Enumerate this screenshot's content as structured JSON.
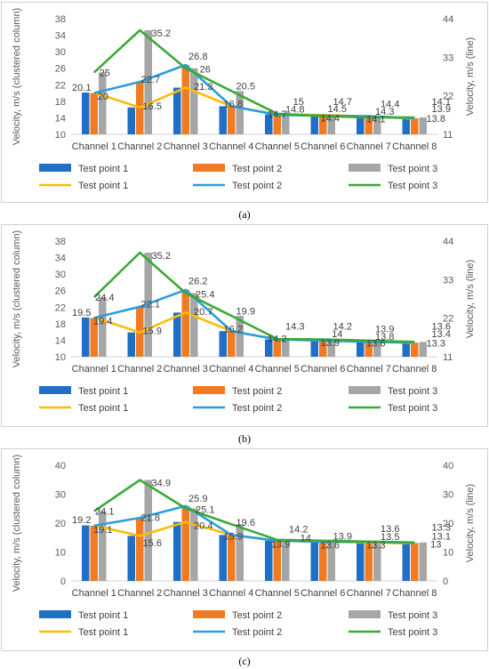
{
  "colors": {
    "bar": [
      "#1f6fc5",
      "#f07b22",
      "#a6a6a6"
    ],
    "line": [
      "#fbbc05",
      "#2a9de0",
      "#3aaa35"
    ]
  },
  "charts": [
    {
      "caption": "(a)",
      "chart_data": {
        "type": "bar+line",
        "categories": [
          "Channel 1",
          "Channel 2",
          "Channel 3",
          "Channel 4",
          "Channel 5",
          "Channel 6",
          "Channel 7",
          "Channel 8"
        ],
        "ylabel_left": "Velocity, m/s (clustered column)",
        "ylabel_right": "Velocity, m/s (line)",
        "ylim_left": [
          10,
          38
        ],
        "yticks_left": [
          "10",
          "14",
          "18",
          "22",
          "26",
          "30",
          "34",
          "38"
        ],
        "ylim_right": [
          11,
          44
        ],
        "yticks_right": [
          "11",
          "22",
          "33",
          "44"
        ],
        "bar_series": [
          {
            "name": "Test point 1",
            "values": [
              20.1,
              16.5,
              21.3,
              16.8,
              14.8,
              14.7,
              14.3,
              13.8
            ]
          },
          {
            "name": "Test point 2",
            "values": [
              20,
              22.7,
              26.8,
              16.8,
              14.7,
              14.5,
              14.4,
              13.9
            ]
          },
          {
            "name": "Test point 3",
            "values": [
              25,
              35.2,
              26,
              20.5,
              15,
              14.4,
              14.1,
              14.1
            ]
          }
        ],
        "line_series": [
          {
            "name": "Test point 1",
            "values": [
              20.1,
              16.5,
              21.3,
              16.8,
              14.8,
              14.7,
              14.3,
              13.8
            ]
          },
          {
            "name": "Test point 2",
            "values": [
              20,
              22.7,
              26.8,
              16.8,
              14.7,
              14.5,
              14.4,
              13.9
            ]
          },
          {
            "name": "Test point 3",
            "values": [
              25,
              35.2,
              26,
              20.5,
              15,
              14.4,
              14.1,
              14.1
            ]
          }
        ],
        "labels": [
          {
            "text": "20.1",
            "cat": 0,
            "y": 21.4,
            "dx": -14
          },
          {
            "text": "20",
            "cat": 0,
            "y": 19.3,
            "dx": 10
          },
          {
            "text": "25",
            "cat": 0,
            "y": 25.0,
            "dx": 12
          },
          {
            "text": "16.5",
            "cat": 1,
            "y": 16.9,
            "dx": 14
          },
          {
            "text": "22.7",
            "cat": 1,
            "y": 23.4,
            "dx": 12
          },
          {
            "text": "35.2",
            "cat": 1,
            "y": 34.6,
            "dx": 24
          },
          {
            "text": "21.3",
            "cat": 2,
            "y": 21.6,
            "dx": 20
          },
          {
            "text": "26.8",
            "cat": 2,
            "y": 29.0,
            "dx": 14
          },
          {
            "text": "26",
            "cat": 2,
            "y": 25.8,
            "dx": 22
          },
          {
            "text": "16.8",
            "cat": 3,
            "y": 17.4,
            "dx": 2
          },
          {
            "text": "20.5",
            "cat": 3,
            "y": 21.7,
            "dx": 16
          },
          {
            "text": "15",
            "cat": 4,
            "y": 18.0,
            "dx": 24
          },
          {
            "text": "14.8",
            "cat": 4,
            "y": 16.1,
            "dx": 20
          },
          {
            "text": "14.7",
            "cat": 4,
            "y": 15.0,
            "dx": 0
          },
          {
            "text": "14.7",
            "cat": 5,
            "y": 18.0,
            "dx": 22
          },
          {
            "text": "14.5",
            "cat": 5,
            "y": 16.2,
            "dx": 16
          },
          {
            "text": "14.4",
            "cat": 5,
            "y": 14.0,
            "dx": 8
          },
          {
            "text": "14.4",
            "cat": 6,
            "y": 17.4,
            "dx": 24
          },
          {
            "text": "14.3",
            "cat": 6,
            "y": 15.6,
            "dx": 18
          },
          {
            "text": "14.1",
            "cat": 6,
            "y": 13.8,
            "dx": 8
          },
          {
            "text": "14.1",
            "cat": 7,
            "y": 18.0,
            "dx": 30
          },
          {
            "text": "13.9",
            "cat": 7,
            "y": 16.2,
            "dx": 30
          },
          {
            "text": "13.8",
            "cat": 7,
            "y": 13.9,
            "dx": 24
          }
        ]
      }
    },
    {
      "caption": "(b)",
      "chart_data": {
        "type": "bar+line",
        "categories": [
          "Channel 1",
          "Channel 2",
          "Channel 3",
          "Channel 4",
          "Channel 5",
          "Channel 6",
          "Channel 7",
          "Channel 8"
        ],
        "ylabel_left": "Velocity, m/s (clustered column)",
        "ylabel_right": "Velocity, m/s (line)",
        "ylim_left": [
          10,
          38
        ],
        "yticks_left": [
          "10",
          "14",
          "18",
          "22",
          "26",
          "30",
          "34",
          "38"
        ],
        "ylim_right": [
          11,
          44
        ],
        "yticks_right": [
          "11",
          "22",
          "33",
          "44"
        ],
        "bar_series": [
          {
            "name": "Test point 1",
            "values": [
              19.5,
              15.9,
              20.7,
              16.2,
              14.2,
              14,
              13.8,
              13.3
            ]
          },
          {
            "name": "Test point 2",
            "values": [
              19.4,
              22.1,
              26.2,
              16.2,
              14.2,
              13.9,
              13.6,
              13.4
            ]
          },
          {
            "name": "Test point 3",
            "values": [
              24.4,
              35.2,
              25.4,
              19.9,
              14.3,
              14.2,
              13.9,
              13.6
            ]
          }
        ],
        "line_series": [
          {
            "name": "Test point 1",
            "values": [
              19.5,
              15.9,
              20.7,
              16.2,
              14.2,
              14,
              13.8,
              13.3
            ]
          },
          {
            "name": "Test point 2",
            "values": [
              19.4,
              22.1,
              26.2,
              16.2,
              14.2,
              13.9,
              13.6,
              13.4
            ]
          },
          {
            "name": "Test point 3",
            "values": [
              24.4,
              35.2,
              25.4,
              19.9,
              14.3,
              14.2,
              13.9,
              13.6
            ]
          }
        ],
        "labels": [
          {
            "text": "19.5",
            "cat": 0,
            "y": 20.8,
            "dx": -14
          },
          {
            "text": "19.4",
            "cat": 0,
            "y": 18.7,
            "dx": 10
          },
          {
            "text": "24.4",
            "cat": 0,
            "y": 24.4,
            "dx": 12
          },
          {
            "text": "15.9",
            "cat": 1,
            "y": 16.4,
            "dx": 14
          },
          {
            "text": "22.1",
            "cat": 1,
            "y": 22.8,
            "dx": 12
          },
          {
            "text": "35.2",
            "cat": 1,
            "y": 34.6,
            "dx": 24
          },
          {
            "text": "20.7",
            "cat": 2,
            "y": 21.0,
            "dx": 20
          },
          {
            "text": "26.2",
            "cat": 2,
            "y": 28.4,
            "dx": 14
          },
          {
            "text": "25.4",
            "cat": 2,
            "y": 25.2,
            "dx": 22
          },
          {
            "text": "16.2",
            "cat": 3,
            "y": 16.8,
            "dx": 2
          },
          {
            "text": "19.9",
            "cat": 3,
            "y": 21.1,
            "dx": 16
          },
          {
            "text": "14.3",
            "cat": 4,
            "y": 17.4,
            "dx": 20
          },
          {
            "text": "14.2",
            "cat": 4,
            "y": 14.4,
            "dx": 0
          },
          {
            "text": "14.2",
            "cat": 5,
            "y": 17.4,
            "dx": 22
          },
          {
            "text": "14",
            "cat": 5,
            "y": 15.6,
            "dx": 16
          },
          {
            "text": "13.9",
            "cat": 5,
            "y": 13.4,
            "dx": 8
          },
          {
            "text": "13.9",
            "cat": 6,
            "y": 16.8,
            "dx": 18
          },
          {
            "text": "13.8",
            "cat": 6,
            "y": 15.0,
            "dx": 18
          },
          {
            "text": "13.6",
            "cat": 6,
            "y": 13.3,
            "dx": 8
          },
          {
            "text": "13.6",
            "cat": 7,
            "y": 17.4,
            "dx": 30
          },
          {
            "text": "13.4",
            "cat": 7,
            "y": 15.6,
            "dx": 30
          },
          {
            "text": "13.3",
            "cat": 7,
            "y": 13.3,
            "dx": 24
          }
        ]
      }
    },
    {
      "caption": "(c)",
      "chart_data": {
        "type": "bar+line",
        "categories": [
          "Channel 1",
          "Channel 2",
          "Channel 3",
          "Channel 4",
          "Channel 5",
          "Channel 6",
          "Channel 7",
          "Channel 8"
        ],
        "ylabel_left": "Velocity, m/s (clustered column)",
        "ylabel_right": "Velocity, m/s (line)",
        "ylim_left": [
          0,
          40
        ],
        "yticks_left": [
          "0",
          "10",
          "20",
          "30",
          "40"
        ],
        "ylim_right": [
          0,
          40
        ],
        "yticks_right": [
          "0",
          "10",
          "20",
          "30",
          "40"
        ],
        "bar_series": [
          {
            "name": "Test point 1",
            "values": [
              19.2,
              15.6,
              20.4,
              15.9,
              13.9,
              13.6,
              13.3,
              13
            ]
          },
          {
            "name": "Test point 2",
            "values": [
              19.1,
              21.8,
              25.9,
              15.9,
              13.9,
              13.6,
              13.5,
              13.1
            ]
          },
          {
            "name": "Test point 3",
            "values": [
              24.1,
              34.9,
              25.1,
              19.6,
              14.2,
              13.9,
              13.6,
              13.3
            ]
          }
        ],
        "line_series": [
          {
            "name": "Test point 1",
            "values": [
              19.2,
              15.6,
              20.4,
              15.9,
              13.9,
              13.6,
              13.3,
              13
            ]
          },
          {
            "name": "Test point 2",
            "values": [
              19.1,
              21.8,
              25.9,
              15.9,
              13.9,
              13.6,
              13.5,
              13.1
            ]
          },
          {
            "name": "Test point 3",
            "values": [
              24.1,
              34.9,
              25.1,
              19.6,
              14.2,
              13.9,
              13.6,
              13.3
            ]
          }
        ],
        "labels": [
          {
            "text": "19.2",
            "cat": 0,
            "y": 21.2,
            "dx": -14
          },
          {
            "text": "19.1",
            "cat": 0,
            "y": 17.8,
            "dx": 10
          },
          {
            "text": "24.1",
            "cat": 0,
            "y": 24.1,
            "dx": 12
          },
          {
            "text": "15.6",
            "cat": 1,
            "y": 13.2,
            "dx": 14
          },
          {
            "text": "21.8",
            "cat": 1,
            "y": 22.0,
            "dx": 12
          },
          {
            "text": "34.9",
            "cat": 1,
            "y": 34.0,
            "dx": 24
          },
          {
            "text": "20.4",
            "cat": 2,
            "y": 19.3,
            "dx": 20
          },
          {
            "text": "25.9",
            "cat": 2,
            "y": 28.6,
            "dx": 14
          },
          {
            "text": "25.1",
            "cat": 2,
            "y": 24.8,
            "dx": 22
          },
          {
            "text": "15.9",
            "cat": 3,
            "y": 15.5,
            "dx": 2
          },
          {
            "text": "19.6",
            "cat": 3,
            "y": 20.3,
            "dx": 16
          },
          {
            "text": "14.2",
            "cat": 4,
            "y": 18.0,
            "dx": 24
          },
          {
            "text": "13.9",
            "cat": 4,
            "y": 12.8,
            "dx": 4
          },
          {
            "text": "14",
            "cat": 4,
            "y": 15.0,
            "dx": 32
          },
          {
            "text": "13.9",
            "cat": 5,
            "y": 15.5,
            "dx": 22
          },
          {
            "text": "13.6",
            "cat": 5,
            "y": 12.4,
            "dx": 8
          },
          {
            "text": "13.6",
            "cat": 6,
            "y": 18.2,
            "dx": 24
          },
          {
            "text": "13.5",
            "cat": 6,
            "y": 15.4,
            "dx": 24
          },
          {
            "text": "13.3",
            "cat": 6,
            "y": 12.4,
            "dx": 8
          },
          {
            "text": "13.3",
            "cat": 7,
            "y": 18.6,
            "dx": 30
          },
          {
            "text": "13.1",
            "cat": 7,
            "y": 15.6,
            "dx": 30
          },
          {
            "text": "13",
            "cat": 7,
            "y": 12.8,
            "dx": 24
          }
        ]
      }
    }
  ]
}
